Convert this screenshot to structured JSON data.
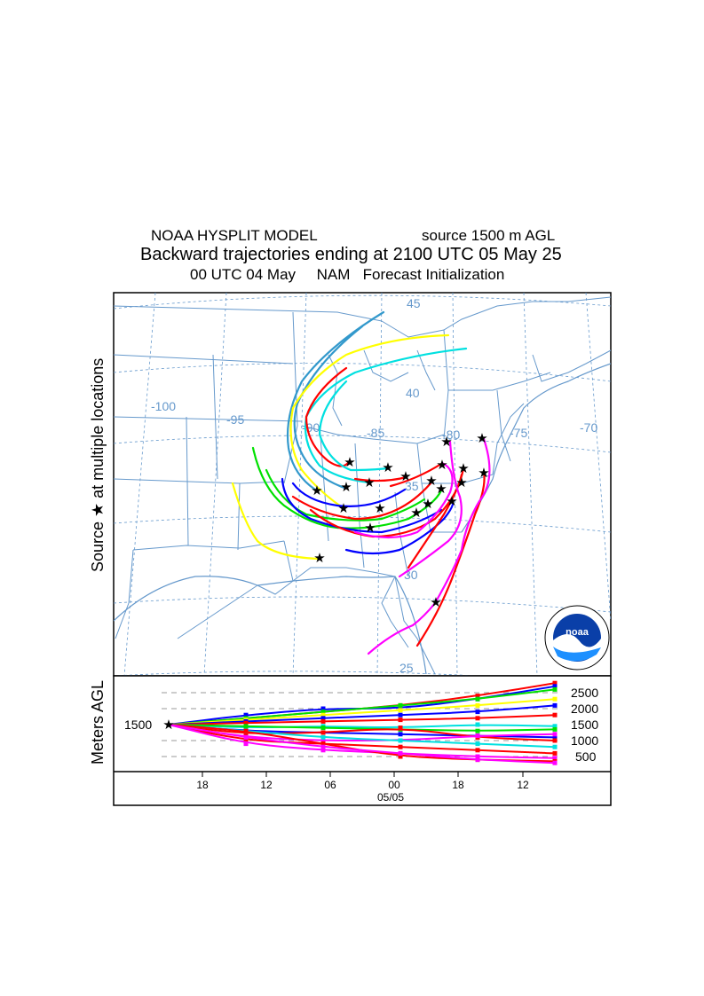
{
  "title": {
    "model": "NOAA HYSPLIT MODEL",
    "source_height": "source 1500 m AGL",
    "main": "Backward trajectories ending at 2100 UTC 05 May 25",
    "meteo": "00 UTC 04 May     NAM   Forecast Initialization"
  },
  "map": {
    "ylabel": "Source ★  at multiple locations",
    "lon_labels": [
      "-100",
      "-95",
      "-90",
      "-85",
      "-80",
      "-75",
      "-70"
    ],
    "lat_labels": [
      "45",
      "40",
      "35",
      "30",
      "25"
    ]
  },
  "logo": {
    "text": "noaa"
  },
  "height_panel": {
    "ylabel": "Meters AGL",
    "source_label": "1500",
    "y_ticks": [
      "2500",
      "2000",
      "1500",
      "1000",
      "500"
    ],
    "x_ticks": [
      "18",
      "12",
      "06",
      "00",
      "18",
      "12"
    ],
    "date_label": "05/05"
  },
  "colors": {
    "red": "#ff0000",
    "blue": "#0000ff",
    "green": "#00e000",
    "cyan": "#00e0e0",
    "magenta": "#ff00ff",
    "yellow": "#ffff00",
    "steelblue": "#3399cc",
    "map_lines": "#6699cc"
  },
  "chart_data": {
    "type": "line",
    "x": [
      "18",
      "12",
      "06",
      "00",
      "18",
      "12"
    ],
    "ylim": [
      0,
      3000
    ],
    "series": [
      {
        "color": "red",
        "values": [
          1500,
          1700,
          1900,
          2100,
          2400,
          2800
        ]
      },
      {
        "color": "blue",
        "values": [
          1500,
          1800,
          2000,
          2000,
          2300,
          2700
        ]
      },
      {
        "color": "green",
        "values": [
          1500,
          1700,
          1900,
          2100,
          2300,
          2600
        ]
      },
      {
        "color": "yellow",
        "values": [
          1500,
          1650,
          1800,
          1950,
          2100,
          2300
        ]
      },
      {
        "color": "blue",
        "values": [
          1500,
          1600,
          1700,
          1800,
          1900,
          2100
        ]
      },
      {
        "color": "red",
        "values": [
          1500,
          1550,
          1600,
          1650,
          1700,
          1800
        ]
      },
      {
        "color": "cyan",
        "values": [
          1500,
          1400,
          1450,
          1400,
          1500,
          1450
        ]
      },
      {
        "color": "green",
        "values": [
          1500,
          1450,
          1400,
          1350,
          1300,
          1350
        ]
      },
      {
        "color": "blue",
        "values": [
          1500,
          1300,
          1250,
          1200,
          1150,
          1100
        ]
      },
      {
        "color": "red",
        "values": [
          1500,
          1200,
          1250,
          1400,
          1100,
          1000
        ]
      },
      {
        "color": "magenta",
        "values": [
          1500,
          1100,
          1000,
          1000,
          1150,
          1200
        ]
      },
      {
        "color": "cyan",
        "values": [
          1500,
          1300,
          1100,
          1000,
          900,
          800
        ]
      },
      {
        "color": "red",
        "values": [
          1500,
          1000,
          900,
          800,
          700,
          600
        ]
      },
      {
        "color": "magenta",
        "values": [
          1500,
          900,
          700,
          600,
          500,
          450
        ]
      },
      {
        "color": "red",
        "values": [
          1500,
          1300,
          900,
          500,
          400,
          350
        ]
      },
      {
        "color": "magenta",
        "values": [
          1500,
          1100,
          800,
          600,
          400,
          300
        ]
      }
    ]
  }
}
